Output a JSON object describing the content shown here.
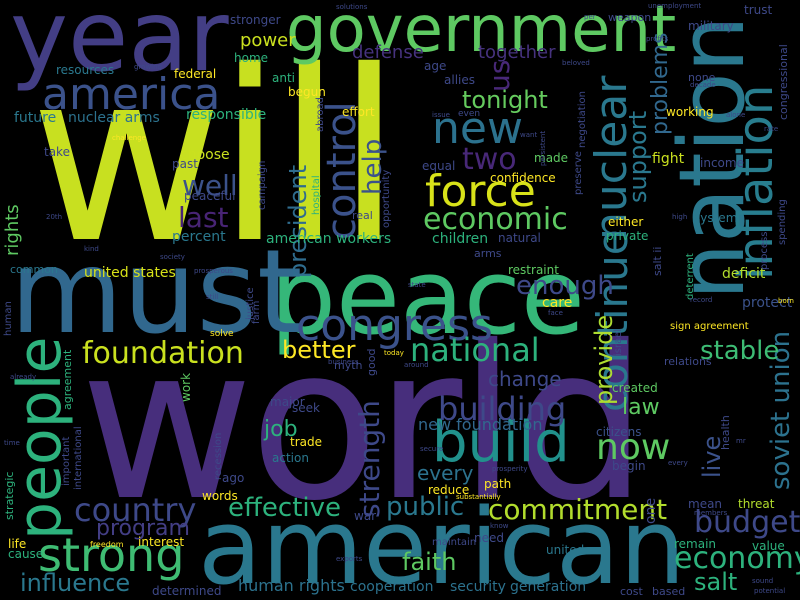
{
  "words": [
    {
      "text": "will",
      "color": "#c8e020"
    },
    {
      "text": "world",
      "color": "#472e7c"
    },
    {
      "text": "peace",
      "color": "#35b779"
    },
    {
      "text": "must",
      "color": "#31688e"
    },
    {
      "text": "american",
      "color": "#2a788e"
    },
    {
      "text": "year",
      "color": "#433e85"
    },
    {
      "text": "nation",
      "color": "#2a788e"
    },
    {
      "text": "government",
      "color": "#5ec962"
    },
    {
      "text": "people",
      "color": "#2db27d"
    },
    {
      "text": "congress",
      "color": "#3b528b"
    },
    {
      "text": "build",
      "color": "#21918c"
    },
    {
      "text": "inflation",
      "color": "#287d8e"
    },
    {
      "text": "america",
      "color": "#3b528b"
    },
    {
      "text": "strong",
      "color": "#3fbc73"
    },
    {
      "text": "nuclear",
      "color": "#2a788e"
    },
    {
      "text": "control",
      "color": "#3b528b"
    },
    {
      "text": "new",
      "color": "#2c728e"
    },
    {
      "text": "force",
      "color": "#d8e219"
    },
    {
      "text": "foundation",
      "color": "#cae11f"
    },
    {
      "text": "national",
      "color": "#2db27d"
    },
    {
      "text": "continue",
      "color": "#2a788e"
    },
    {
      "text": "economic",
      "color": "#5ec962"
    },
    {
      "text": "building",
      "color": "#3e4989"
    },
    {
      "text": "commitment",
      "color": "#b2dd2d"
    },
    {
      "text": "economy",
      "color": "#2db27d"
    },
    {
      "text": "country",
      "color": "#3e4989"
    },
    {
      "text": "budget",
      "color": "#3e4989"
    },
    {
      "text": "now",
      "color": "#5ec962"
    },
    {
      "text": "strength",
      "color": "#3e4989"
    },
    {
      "text": "effective",
      "color": "#2db27d"
    },
    {
      "text": "soviet union",
      "color": "#2c728e"
    },
    {
      "text": "influence",
      "color": "#2a788e"
    },
    {
      "text": "enough",
      "color": "#3e4989"
    },
    {
      "text": "provide",
      "color": "#addc30"
    },
    {
      "text": "two",
      "color": "#482878"
    },
    {
      "text": "tonight",
      "color": "#65cb5e"
    },
    {
      "text": "stable",
      "color": "#3dbc74"
    },
    {
      "text": "help",
      "color": "#3b528b"
    },
    {
      "text": "president",
      "color": "#2f6c8e"
    },
    {
      "text": "last",
      "color": "#482475"
    },
    {
      "text": "program",
      "color": "#433e85"
    },
    {
      "text": "public",
      "color": "#2a788e"
    },
    {
      "text": "better",
      "color": "#fde725"
    },
    {
      "text": "faith",
      "color": "#5ec962"
    },
    {
      "text": "well",
      "color": "#3b528b"
    },
    {
      "text": "support",
      "color": "#2a788e"
    },
    {
      "text": "problems",
      "color": "#31688e"
    },
    {
      "text": "law",
      "color": "#5ec962"
    },
    {
      "text": "live",
      "color": "#3b528b"
    },
    {
      "text": "salt",
      "color": "#2db27d"
    },
    {
      "text": "us",
      "color": "#482878"
    },
    {
      "text": "every",
      "color": "#2c728e"
    },
    {
      "text": "change",
      "color": "#3e4989"
    },
    {
      "text": "job",
      "color": "#2db27d"
    },
    {
      "text": "rights",
      "color": "#5ec962"
    },
    {
      "text": "defense",
      "color": "#46327e"
    },
    {
      "text": "together",
      "color": "#46327e"
    },
    {
      "text": "power",
      "color": "#cae11f"
    },
    {
      "text": "human rights",
      "color": "#2c728e"
    },
    {
      "text": "new foundation",
      "color": "#31688e"
    },
    {
      "text": "security",
      "color": "#2c728e"
    },
    {
      "text": "generation",
      "color": "#2c728e"
    },
    {
      "text": "cooperation",
      "color": "#2c728e"
    },
    {
      "text": "american workers",
      "color": "#2db27d"
    },
    {
      "text": "united states",
      "color": "#d8e219"
    },
    {
      "text": "responsible",
      "color": "#2db27d"
    },
    {
      "text": "future",
      "color": "#2a788e"
    },
    {
      "text": "nuclear arms",
      "color": "#2c728e"
    },
    {
      "text": "choose",
      "color": "#cae11f"
    },
    {
      "text": "percent",
      "color": "#2a788e"
    },
    {
      "text": "children",
      "color": "#2db27d"
    },
    {
      "text": "fight",
      "color": "#cae11f"
    },
    {
      "text": "deficit",
      "color": "#b2dd2d"
    },
    {
      "text": "protect",
      "color": "#3b528b"
    },
    {
      "text": "care",
      "color": "#fde725"
    },
    {
      "text": "restraint",
      "color": "#5ec962"
    },
    {
      "text": "created",
      "color": "#5ec962"
    },
    {
      "text": "citizens",
      "color": "#3b528b"
    },
    {
      "text": "threat",
      "color": "#b2dd2d"
    },
    {
      "text": "remain",
      "color": "#2db27d"
    },
    {
      "text": "value",
      "color": "#2db27d"
    },
    {
      "text": "mean",
      "color": "#3e4989"
    },
    {
      "text": "begin",
      "color": "#3e4989"
    },
    {
      "text": "path",
      "color": "#fde725"
    },
    {
      "text": "reduce",
      "color": "#fde725"
    },
    {
      "text": "confidence",
      "color": "#fde725"
    },
    {
      "text": "effort",
      "color": "#fde725"
    },
    {
      "text": "allies",
      "color": "#3e4989"
    },
    {
      "text": "federal",
      "color": "#fde725"
    },
    {
      "text": "resources",
      "color": "#2a788e"
    },
    {
      "text": "home",
      "color": "#2db27d"
    },
    {
      "text": "anti",
      "color": "#2db27d"
    },
    {
      "text": "begun",
      "color": "#fde725"
    },
    {
      "text": "age",
      "color": "#3e4989"
    },
    {
      "text": "take",
      "color": "#3e4989"
    },
    {
      "text": "past",
      "color": "#3e4989"
    },
    {
      "text": "peaceful",
      "color": "#3e4989"
    },
    {
      "text": "ago",
      "color": "#3e4989"
    },
    {
      "text": "words",
      "color": "#fde725"
    },
    {
      "text": "trade",
      "color": "#fde725"
    },
    {
      "text": "seek",
      "color": "#3e4989"
    },
    {
      "text": "major",
      "color": "#3e4989"
    },
    {
      "text": "action",
      "color": "#2a788e"
    },
    {
      "text": "work",
      "color": "#5ec962"
    },
    {
      "text": "cause",
      "color": "#2db27d"
    },
    {
      "text": "life",
      "color": "#fde725"
    },
    {
      "text": "interest",
      "color": "#fde725"
    },
    {
      "text": "determined",
      "color": "#3e4989"
    },
    {
      "text": "war",
      "color": "#3e4989"
    },
    {
      "text": "united",
      "color": "#2a788e"
    },
    {
      "text": "need",
      "color": "#3e4989"
    },
    {
      "text": "equal",
      "color": "#3e4989"
    },
    {
      "text": "made",
      "color": "#5ec962"
    },
    {
      "text": "either",
      "color": "#fde725"
    },
    {
      "text": "private",
      "color": "#2db27d"
    },
    {
      "text": "natural",
      "color": "#3e4989"
    },
    {
      "text": "system",
      "color": "#2a788e"
    },
    {
      "text": "income",
      "color": "#3e4989"
    },
    {
      "text": "working",
      "color": "#fde725"
    },
    {
      "text": "military",
      "color": "#3e4989"
    },
    {
      "text": "trust",
      "color": "#3e4989"
    },
    {
      "text": "stronger",
      "color": "#3e4989"
    },
    {
      "text": "weapon",
      "color": "#3e4989"
    },
    {
      "text": "none",
      "color": "#3e4989"
    },
    {
      "text": "common",
      "color": "#2a788e"
    },
    {
      "text": "real",
      "color": "#3e4989"
    },
    {
      "text": "arms",
      "color": "#3e4989"
    },
    {
      "text": "myth",
      "color": "#3e4989"
    },
    {
      "text": "relations",
      "color": "#3e4989"
    },
    {
      "text": "sign agreement",
      "color": "#fde725"
    },
    {
      "text": "congressional",
      "color": "#3e4989"
    },
    {
      "text": "process",
      "color": "#3e4989"
    },
    {
      "text": "spending",
      "color": "#3e4989"
    },
    {
      "text": "agreement",
      "color": "#2db27d"
    },
    {
      "text": "international",
      "color": "#3e4989"
    },
    {
      "text": "important",
      "color": "#3e4989"
    },
    {
      "text": "strategic",
      "color": "#2db27d"
    },
    {
      "text": "human",
      "color": "#3e4989"
    },
    {
      "text": "recession",
      "color": "#3e4989"
    },
    {
      "text": "justice",
      "color": "#3e4989"
    },
    {
      "text": "farm",
      "color": "#3e4989"
    },
    {
      "text": "good",
      "color": "#3e4989"
    },
    {
      "text": "health",
      "color": "#3e4989"
    },
    {
      "text": "salt ii",
      "color": "#3e4989"
    },
    {
      "text": "deterrent",
      "color": "#2db27d"
    },
    {
      "text": "israel",
      "color": "#3e4989"
    },
    {
      "text": "negotiation",
      "color": "#3e4989"
    },
    {
      "text": "preserve",
      "color": "#3e4989"
    },
    {
      "text": "opportunity",
      "color": "#3e4989"
    },
    {
      "text": "hospital",
      "color": "#2db27d"
    },
    {
      "text": "campaign",
      "color": "#3e4989"
    },
    {
      "text": "abroad",
      "color": "#3e4989"
    },
    {
      "text": "one",
      "color": "#3e4989"
    },
    {
      "text": "cost",
      "color": "#3e4989"
    },
    {
      "text": "based",
      "color": "#3e4989"
    },
    {
      "text": "maintain",
      "color": "#3e4989"
    },
    {
      "text": "freedom",
      "color": "#fde725"
    },
    {
      "text": "exports",
      "color": "#3e4989"
    },
    {
      "text": "unemployment",
      "color": "#3e4989"
    },
    {
      "text": "profits",
      "color": "#3e4989"
    },
    {
      "text": "growing",
      "color": "#3e4989"
    },
    {
      "text": "beloved",
      "color": "#3e4989"
    },
    {
      "text": "decade",
      "color": "#3e4989"
    },
    {
      "text": "alone",
      "color": "#3e4989"
    },
    {
      "text": "challenge",
      "color": "#fde725"
    },
    {
      "text": "issue",
      "color": "#3e4989"
    },
    {
      "text": "even",
      "color": "#3e4989"
    },
    {
      "text": "want",
      "color": "#3e4989"
    },
    {
      "text": "society",
      "color": "#3e4989"
    },
    {
      "text": "prosperous",
      "color": "#3e4989"
    },
    {
      "text": "still",
      "color": "#3e4989"
    },
    {
      "text": "solve",
      "color": "#fde725"
    },
    {
      "text": "already",
      "color": "#3e4989"
    },
    {
      "text": "today",
      "color": "#fde725"
    },
    {
      "text": "business",
      "color": "#3e4989"
    },
    {
      "text": "around",
      "color": "#3e4989"
    },
    {
      "text": "time",
      "color": "#3e4989"
    },
    {
      "text": "kind",
      "color": "#3e4989"
    },
    {
      "text": "prosperity",
      "color": "#3e4989"
    },
    {
      "text": "secure",
      "color": "#3e4989"
    },
    {
      "text": "substantially",
      "color": "#fde725"
    },
    {
      "text": "know",
      "color": "#3e4989"
    },
    {
      "text": "members",
      "color": "#3e4989"
    },
    {
      "text": "sound",
      "color": "#3e4989"
    },
    {
      "text": "potential",
      "color": "#3e4989"
    },
    {
      "text": "born",
      "color": "#fde725"
    },
    {
      "text": "record",
      "color": "#3e4989"
    },
    {
      "text": "face",
      "color": "#3e4989"
    },
    {
      "text": "state",
      "color": "#3e4989"
    },
    {
      "text": "high",
      "color": "#3e4989"
    },
    {
      "text": "solutions",
      "color": "#3e4989"
    },
    {
      "text": "per",
      "color": "#3e4989"
    },
    {
      "text": "mr",
      "color": "#3e4989"
    },
    {
      "text": "20th",
      "color": "#3e4989"
    },
    {
      "text": "persistent",
      "color": "#3e4989"
    },
    {
      "text": "rate",
      "color": "#3e4989"
    },
    {
      "text": "every",
      "color": "#3e4989"
    }
  ]
}
